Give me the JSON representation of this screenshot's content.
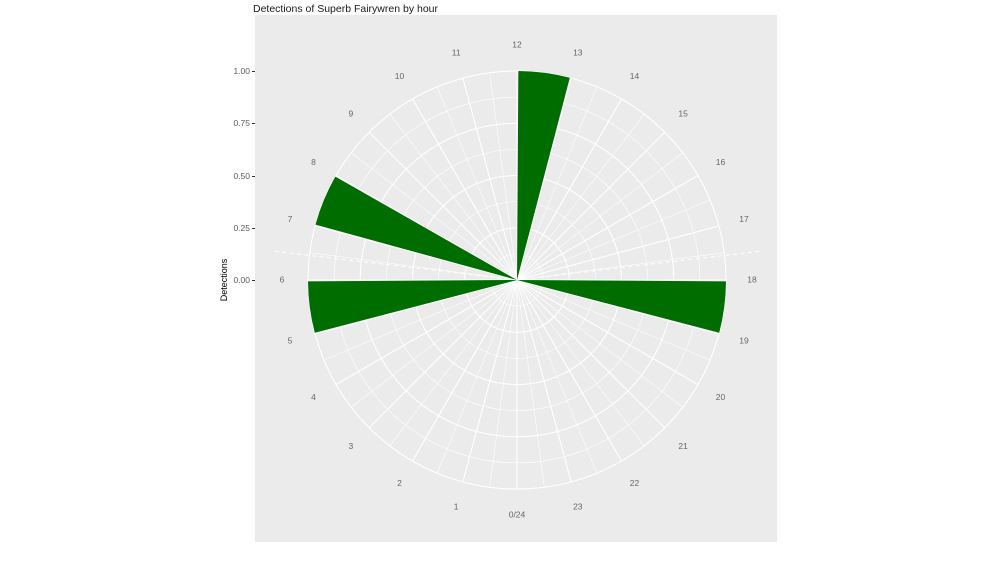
{
  "title": "Detections of Superb Fairywren by hour",
  "y_axis": {
    "title": "Detections",
    "ticks": [
      {
        "label": "1.00",
        "value": 1.0
      },
      {
        "label": "0.75",
        "value": 0.75
      },
      {
        "label": "0.50",
        "value": 0.5
      },
      {
        "label": "0.25",
        "value": 0.25
      },
      {
        "label": "0.00",
        "value": 0.0
      }
    ]
  },
  "colors": {
    "panel_bg": "#EBEBEB",
    "grid": "#FFFFFF",
    "bar": "#006D00",
    "axis_text": "#5c5c5c",
    "hour_text": "#666666",
    "tick_mark": "#333333",
    "title_text": "#1a1a1a"
  },
  "chart_data": {
    "type": "bar",
    "coord": "polar",
    "title": "Detections of Superb Fairywren by hour",
    "xlabel": "hour",
    "ylabel": "Detections",
    "categories": [
      0,
      1,
      2,
      3,
      4,
      5,
      6,
      7,
      8,
      9,
      10,
      11,
      12,
      13,
      14,
      15,
      16,
      17,
      18,
      19,
      20,
      21,
      22,
      23
    ],
    "hour_labels": [
      "0/24",
      "1",
      "2",
      "3",
      "4",
      "5",
      "6",
      "7",
      "8",
      "9",
      "10",
      "11",
      "12",
      "13",
      "14",
      "15",
      "16",
      "17",
      "18",
      "19",
      "20",
      "21",
      "22",
      "23"
    ],
    "values": [
      0,
      0,
      0,
      0,
      0,
      1,
      0,
      1,
      0,
      0,
      0,
      0,
      1,
      0,
      0,
      0,
      0,
      0,
      1,
      0,
      0,
      0,
      0,
      0
    ],
    "ylim": [
      0,
      1
    ],
    "r_major_breaks": [
      0.25,
      0.5,
      0.75,
      1.0
    ],
    "r_minor_breaks": [
      0.125,
      0.375,
      0.625,
      0.875
    ],
    "theta_major_step_hours": 1,
    "theta_minor_step_hours": 0.5,
    "sun_lines_hours": [
      6.45,
      17.55
    ],
    "bar_width_hours": 0.95,
    "bar_color": "#006D00",
    "grid": "on",
    "legend": "none",
    "orientation": "hour-0-at-bottom-clockwise"
  }
}
